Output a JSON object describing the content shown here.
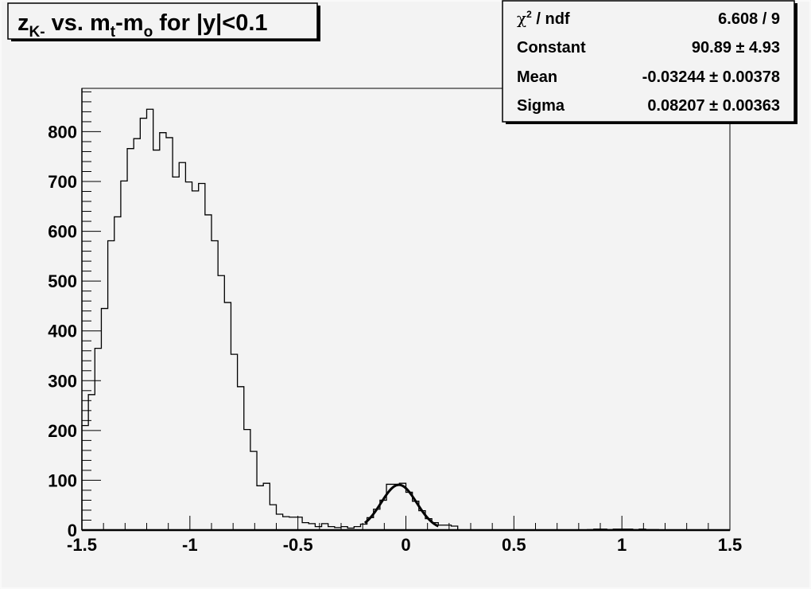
{
  "chart_data": {
    "type": "bar",
    "style": "step-histogram",
    "title": {
      "main": "z",
      "sub1": "K-",
      "mid": " vs. m",
      "sub2": "t",
      "mid2": "-m",
      "sub3": "o",
      "tail": " for |y|<0.1"
    },
    "xlim": [
      -1.5,
      1.5
    ],
    "ylim": [
      0,
      887
    ],
    "bin_width": 0.03,
    "x_ticks": [
      "-1.5",
      "-1",
      "-0.5",
      "0",
      "0.5",
      "1",
      "1.5"
    ],
    "y_ticks": [
      "0",
      "100",
      "200",
      "300",
      "400",
      "500",
      "600",
      "700",
      "800"
    ],
    "values": [
      210,
      272,
      365,
      445,
      581,
      629,
      701,
      766,
      786,
      827,
      845,
      763,
      798,
      788,
      709,
      738,
      699,
      681,
      696,
      633,
      581,
      511,
      457,
      353,
      288,
      202,
      158,
      89,
      94,
      51,
      32,
      27,
      26,
      26,
      15,
      13,
      7,
      13,
      7,
      5,
      7,
      4,
      7,
      12,
      25,
      42,
      60,
      92,
      92,
      94,
      76,
      58,
      39,
      23,
      15,
      10,
      10,
      8,
      0,
      0,
      0,
      0,
      0,
      0,
      0,
      0,
      0,
      0,
      0,
      0,
      0,
      0,
      0,
      0,
      0,
      0,
      0,
      0,
      1,
      2,
      2,
      1,
      2,
      2,
      2,
      1,
      2,
      1,
      1,
      0,
      0,
      0,
      0,
      0,
      0,
      0,
      0,
      0,
      0,
      0
    ],
    "fit": {
      "function": "gaus",
      "constant": 90.89,
      "mean": -0.03244,
      "sigma": 0.08207,
      "range": [
        -0.19,
        0.15
      ]
    },
    "grid": false,
    "legend_position": "top-right"
  },
  "stats": {
    "rows": [
      {
        "label": "ndf",
        "chi": "χ",
        "sup": "2",
        "value": "6.608 / 9"
      },
      {
        "label": "Constant",
        "value": "90.89 ± 4.93"
      },
      {
        "label": "Mean",
        "value": "-0.03244 ± 0.00378"
      },
      {
        "label": "Sigma",
        "value": "0.08207 ± 0.00363"
      }
    ]
  },
  "colors": {
    "background": "#f3f3f3",
    "line": "#000000"
  }
}
